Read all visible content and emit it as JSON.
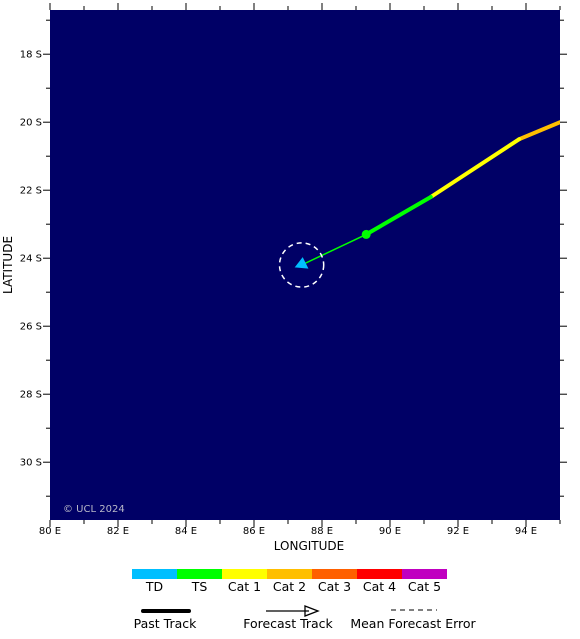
{
  "map": {
    "copyright": "© UCL 2024",
    "xlabel": "LONGITUDE",
    "ylabel": "LATITUDE",
    "lon_range": [
      80,
      95
    ],
    "lat_range": [
      -31.7,
      -16.7
    ],
    "background_color": "#000066",
    "x_ticks": [
      {
        "value": 80,
        "label": "80 E"
      },
      {
        "value": 82,
        "label": "82 E"
      },
      {
        "value": 84,
        "label": "84 E"
      },
      {
        "value": 86,
        "label": "86 E"
      },
      {
        "value": 88,
        "label": "88 E"
      },
      {
        "value": 90,
        "label": "90 E"
      },
      {
        "value": 92,
        "label": "92 E"
      },
      {
        "value": 94,
        "label": "94 E"
      }
    ],
    "y_ticks": [
      {
        "value": -18,
        "label": "18 S"
      },
      {
        "value": -20,
        "label": "20 S"
      },
      {
        "value": -22,
        "label": "22 S"
      },
      {
        "value": -24,
        "label": "24 S"
      },
      {
        "value": -26,
        "label": "26 S"
      },
      {
        "value": -28,
        "label": "28 S"
      },
      {
        "value": -30,
        "label": "30 S"
      }
    ]
  },
  "track": {
    "past_segments": [
      {
        "from": [
          95.0,
          -20.0
        ],
        "to": [
          93.8,
          -20.5
        ],
        "category": "Cat 2"
      },
      {
        "from": [
          93.8,
          -20.5
        ],
        "to": [
          91.2,
          -22.2
        ],
        "category": "Cat 1"
      },
      {
        "from": [
          91.2,
          -22.2
        ],
        "to": [
          89.3,
          -23.3
        ],
        "category": "TS"
      }
    ],
    "current_position": {
      "lon": 89.3,
      "lat": -23.3,
      "category": "TS"
    },
    "forecast_points": [
      {
        "lon": 87.4,
        "lat": -24.2,
        "category": "TD"
      }
    ],
    "forecast_error_radius_deg": 0.65
  },
  "legend": {
    "categories": [
      {
        "label": "TD",
        "color": "#00bfff"
      },
      {
        "label": "TS",
        "color": "#00ff00"
      },
      {
        "label": "Cat 1",
        "color": "#ffff00"
      },
      {
        "label": "Cat 2",
        "color": "#ffbf00"
      },
      {
        "label": "Cat 3",
        "color": "#ff6000"
      },
      {
        "label": "Cat 4",
        "color": "#ff0000"
      },
      {
        "label": "Cat 5",
        "color": "#c000c0"
      }
    ],
    "past_track_label": "Past Track",
    "forecast_track_label": "Forecast Track",
    "error_label": "Mean Forecast Error"
  }
}
